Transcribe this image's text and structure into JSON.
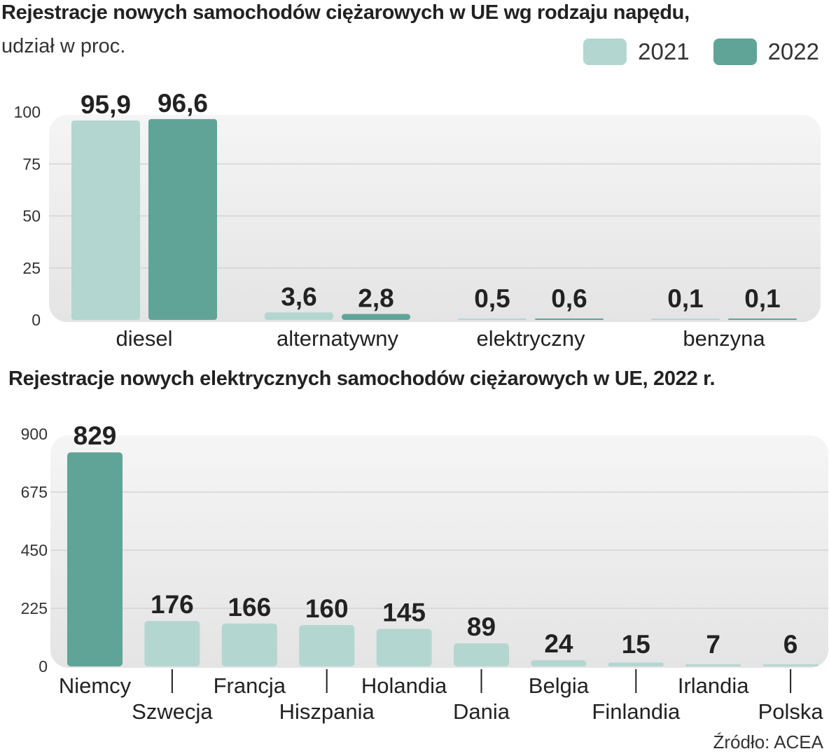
{
  "header": {
    "title": "Rejestracje nowych samochodów ciężarowych w UE wg rodzaju napędu,",
    "subtitle": "udział w proc."
  },
  "legend": [
    {
      "label": "2021",
      "color": "#b3d6d0"
    },
    {
      "label": "2022",
      "color": "#5fa497"
    }
  ],
  "section2": {
    "title": "Rejestracje nowych elektrycznych samochodów ciężarowych w UE, 2022 r."
  },
  "footer": {
    "source": "Źródło: ACEA"
  },
  "chart_data": [
    {
      "type": "bar",
      "title": "Rejestracje nowych samochodów ciężarowych w UE wg rodzaju napędu,",
      "subtitle": "udział w proc.",
      "categories": [
        "diesel",
        "alternatywny",
        "elektryczny",
        "benzyna"
      ],
      "series": [
        {
          "name": "2021",
          "color": "#b3d6d0",
          "values": [
            95.9,
            3.6,
            0.5,
            0.1
          ],
          "labels": [
            "95,9",
            "3,6",
            "0,5",
            "0,1"
          ]
        },
        {
          "name": "2022",
          "color": "#5fa497",
          "values": [
            96.6,
            2.8,
            0.6,
            0.1
          ],
          "labels": [
            "96,6",
            "2,8",
            "0,6",
            "0,1"
          ]
        }
      ],
      "ylim": [
        0,
        100
      ],
      "yticks": [
        0,
        25,
        50,
        75,
        100
      ],
      "grid": true,
      "legend": "top-right"
    },
    {
      "type": "bar",
      "title": "Rejestracje nowych elektrycznych samochodów ciężarowych w UE, 2022 r.",
      "categories": [
        "Niemcy",
        "Szwecja",
        "Francja",
        "Hiszpania",
        "Holandia",
        "Dania",
        "Belgia",
        "Finlandia",
        "Irlandia",
        "Polska"
      ],
      "values": [
        829,
        176,
        166,
        160,
        145,
        89,
        24,
        15,
        7,
        6
      ],
      "highlight": "Niemcy",
      "highlight_color": "#5fa497",
      "color": "#b3d6d0",
      "ylim": [
        0,
        900
      ],
      "yticks": [
        0,
        225,
        450,
        675,
        900
      ],
      "grid": true
    }
  ]
}
